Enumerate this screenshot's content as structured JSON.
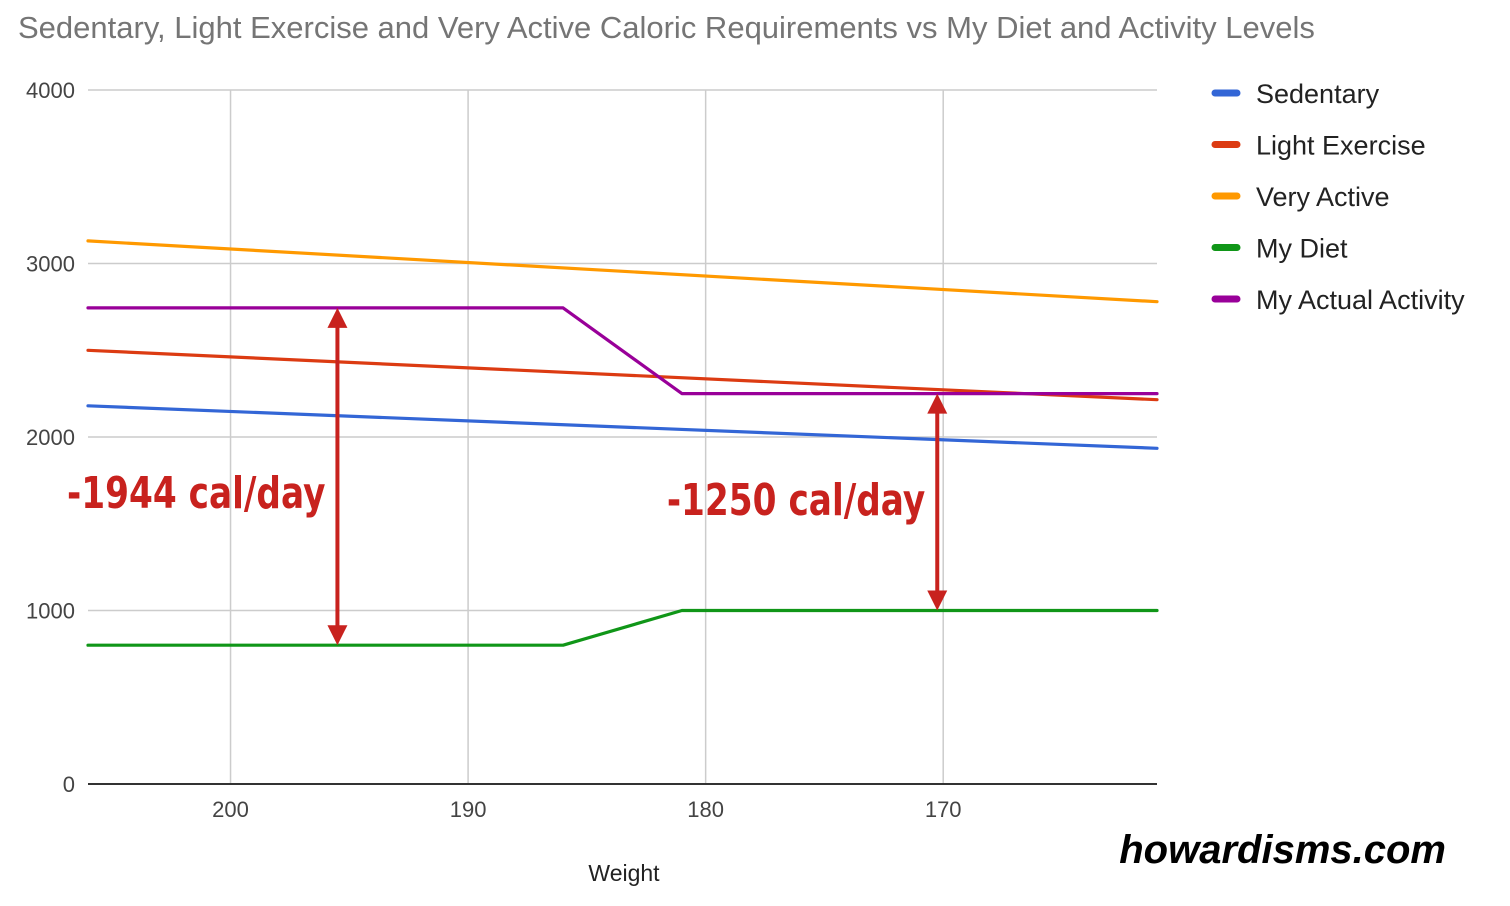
{
  "chart_data": {
    "type": "line",
    "title": "Sedentary, Light Exercise and Very Active Caloric Requirements vs My Diet and Activity Levels",
    "xlabel": "Weight",
    "ylabel": "",
    "xlim": [
      206,
      161
    ],
    "ylim": [
      0,
      4000
    ],
    "x_ticks": [
      200,
      190,
      180,
      170
    ],
    "y_ticks": [
      0,
      1000,
      2000,
      3000,
      4000
    ],
    "grid": true,
    "legend_position": "right",
    "series": [
      {
        "name": "Sedentary",
        "color": "#3366d6",
        "x": [
          206,
          161
        ],
        "values": [
          2180,
          1935
        ]
      },
      {
        "name": "Light Exercise",
        "color": "#dc3b12",
        "x": [
          206,
          161
        ],
        "values": [
          2500,
          2215
        ]
      },
      {
        "name": "Very Active",
        "color": "#ff9900",
        "x": [
          206,
          161
        ],
        "values": [
          3130,
          2780
        ]
      },
      {
        "name": "My Diet",
        "color": "#109618",
        "x": [
          206,
          186,
          181,
          161
        ],
        "values": [
          800,
          800,
          1000,
          1000
        ]
      },
      {
        "name": "My Actual Activity",
        "color": "#990099",
        "x": [
          206,
          186,
          181,
          161
        ],
        "values": [
          2744,
          2744,
          2250,
          2250
        ]
      }
    ],
    "annotations": [
      {
        "text": "-1944 cal/day",
        "color": "#c8221e",
        "arrow_x": 195.5,
        "arrow_from": 800,
        "arrow_to": 2744
      },
      {
        "text": "-1250 cal/day",
        "color": "#c8221e",
        "arrow_x": 170.25,
        "arrow_from": 1000,
        "arrow_to": 2250
      }
    ]
  },
  "watermark": "howardisms.com"
}
